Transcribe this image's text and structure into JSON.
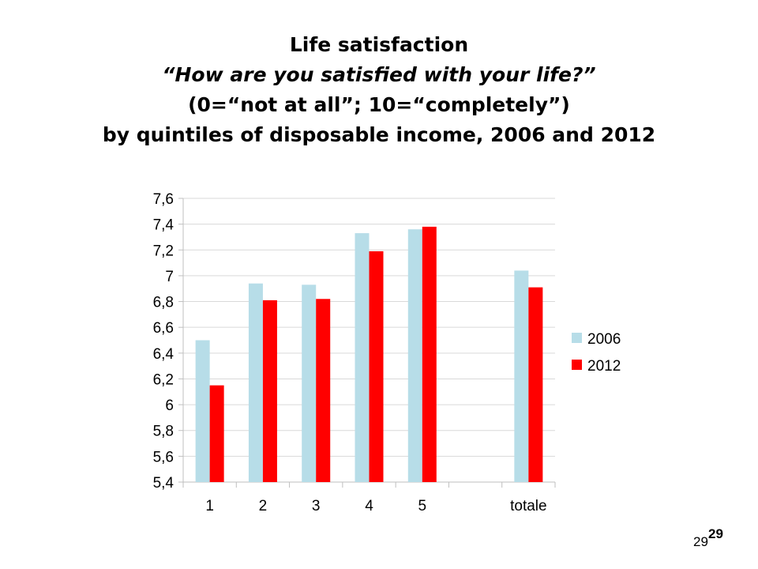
{
  "title": {
    "line1": "Life satisfaction",
    "line2": "“How are you satisfied with your life?”",
    "line3": "(0=“not at all”; 10=“completely”)",
    "line4": "by quintiles of disposable income, 2006 and 2012"
  },
  "chart_data": {
    "type": "bar",
    "categories": [
      "1",
      "2",
      "3",
      "4",
      "5",
      "",
      "totale"
    ],
    "series": [
      {
        "name": "2006",
        "color": "#b7dde8",
        "values": [
          6.5,
          6.94,
          6.93,
          7.33,
          7.36,
          null,
          7.04
        ]
      },
      {
        "name": "2012",
        "color": "#ff0000",
        "values": [
          6.15,
          6.81,
          6.82,
          7.19,
          7.38,
          null,
          6.91
        ]
      }
    ],
    "ylim": [
      5.4,
      7.6
    ],
    "yticks": [
      "5,4",
      "5,6",
      "5,8",
      "6",
      "6,2",
      "6,4",
      "6,6",
      "6,8",
      "7",
      "7,2",
      "7,4",
      "7,6"
    ],
    "grid": true,
    "legend": "right"
  },
  "page_number": "29",
  "page_number_bold": "29"
}
